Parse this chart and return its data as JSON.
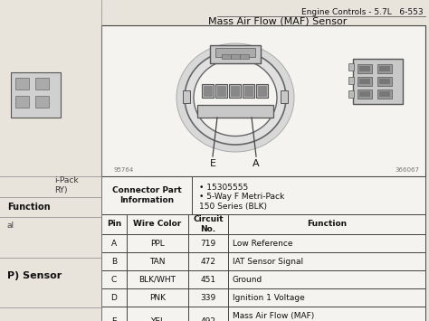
{
  "title_top": "Engine Controls - 5.7L   6-553",
  "title_main": "Mass Air Flow (MAF) Sensor",
  "connector_part_label": "Connector Part\nInformation",
  "connector_part_bullet1": "15305555",
  "connector_part_bullet2": "5-Way F Metri-Pack\n150 Series (BLK)",
  "table_headers": [
    "Pin",
    "Wire Color",
    "Circuit\nNo.",
    "Function"
  ],
  "table_rows": [
    [
      "A",
      "PPL",
      "719",
      "Low Reference"
    ],
    [
      "B",
      "TAN",
      "472",
      "IAT Sensor Signal"
    ],
    [
      "C",
      "BLK/WHT",
      "451",
      "Ground"
    ],
    [
      "D",
      "PNK",
      "339",
      "Ignition 1 Voltage"
    ],
    [
      "E",
      "YEL",
      "492",
      "Mass Air Flow (MAF)\nSensor - Signal"
    ]
  ],
  "page_bg": "#b8a88a",
  "paper_bg": "#e8e4dc",
  "white": "#f5f3f0",
  "border_color": "#444444",
  "text_color": "#111111",
  "gray_light": "#cccccc",
  "gray_mid": "#aaaaaa",
  "gray_dark": "#888888",
  "fig_num_left": "95764",
  "fig_num_right": "366067",
  "label_E": "E",
  "label_A": "A"
}
